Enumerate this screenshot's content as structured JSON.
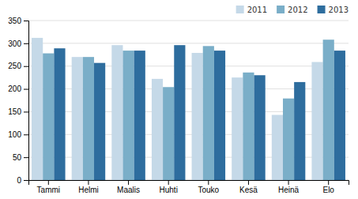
{
  "chart_data": {
    "type": "bar",
    "categories": [
      "Tammi",
      "Helmi",
      "Maalis",
      "Huhti",
      "Touko",
      "Kesä",
      "Heinä",
      "Elo"
    ],
    "series": [
      {
        "name": "2011",
        "color": "#c5d9e8",
        "values": [
          312,
          270,
          296,
          222,
          279,
          225,
          143,
          259
        ]
      },
      {
        "name": "2012",
        "color": "#7aaec8",
        "values": [
          278,
          270,
          284,
          204,
          294,
          236,
          179,
          308
        ]
      },
      {
        "name": "2013",
        "color": "#2e6d9e",
        "values": [
          289,
          257,
          284,
          296,
          284,
          230,
          215,
          284
        ]
      }
    ],
    "ylim": [
      0,
      350
    ],
    "yticks": [
      0,
      50,
      100,
      150,
      200,
      250,
      300,
      350
    ],
    "grid": true,
    "legend": "upper right"
  }
}
